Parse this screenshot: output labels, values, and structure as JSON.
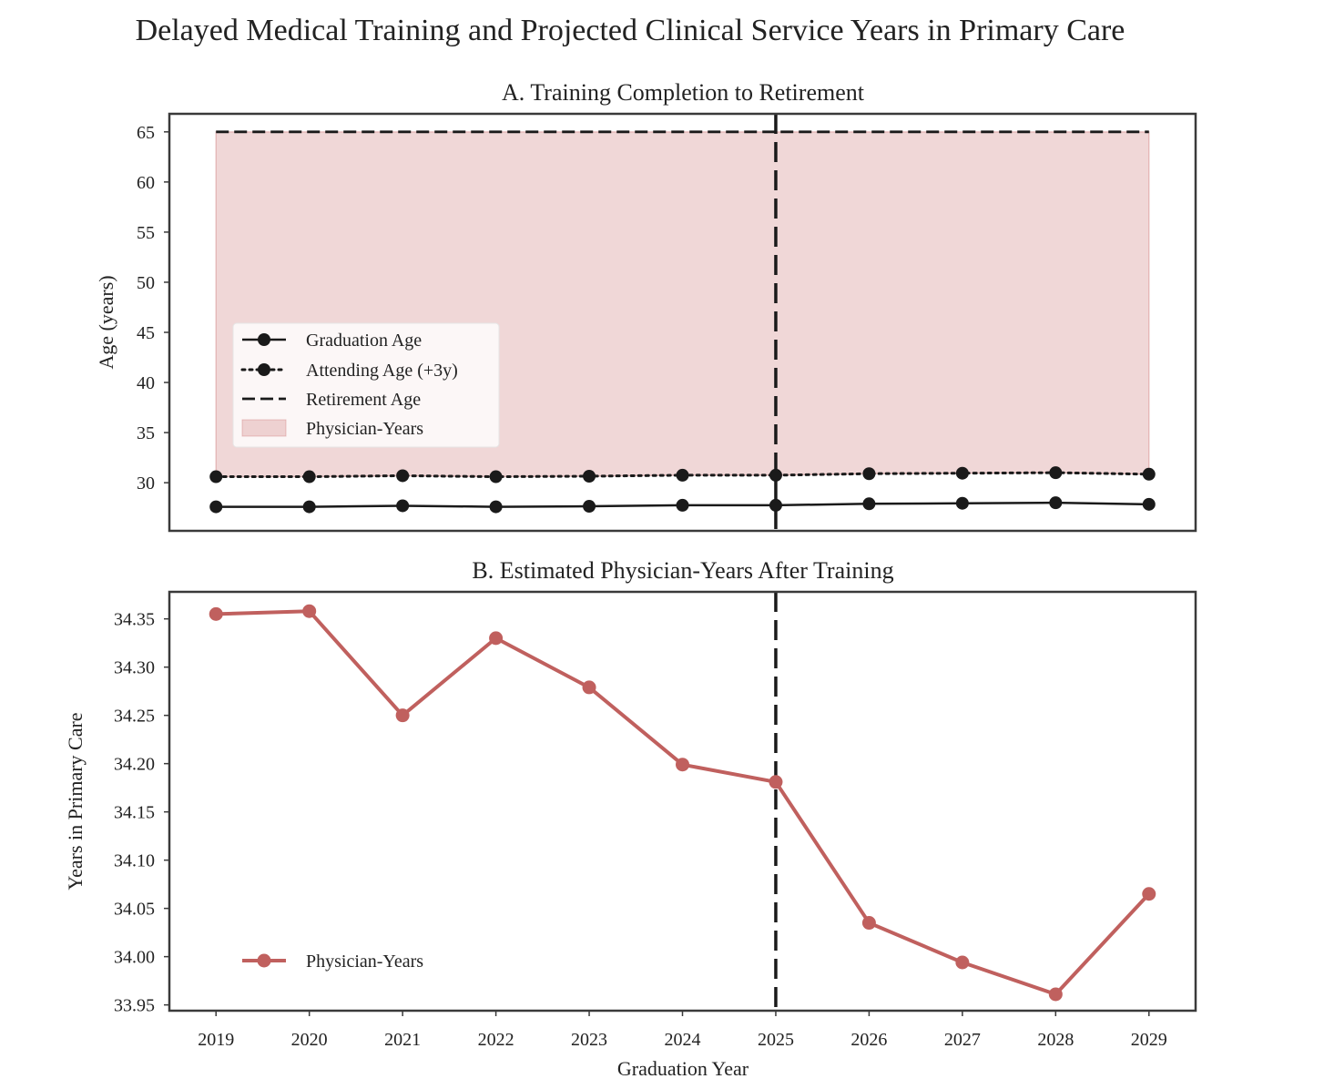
{
  "figure": {
    "title": "Delayed Medical Training and Projected Clinical Service Years in Primary Care"
  },
  "chart_data": [
    {
      "type": "line",
      "title": "A. Training Completion to Retirement",
      "xlabel": "",
      "ylabel": "Age (years)",
      "x": [
        2019,
        2020,
        2021,
        2022,
        2023,
        2024,
        2025,
        2026,
        2027,
        2028,
        2029
      ],
      "xlim": [
        2018.5,
        2029.5
      ],
      "ylim": [
        25.2,
        66.8
      ],
      "yticks": [
        30,
        35,
        40,
        45,
        50,
        55,
        60,
        65
      ],
      "grid": false,
      "legend": "center-left",
      "vline": 2025,
      "series": [
        {
          "name": "Graduation Age",
          "style": "solid",
          "marker": "circle",
          "color": "#1a1a1a",
          "values": [
            27.6,
            27.6,
            27.7,
            27.6,
            27.65,
            27.75,
            27.75,
            27.9,
            27.95,
            28.0,
            27.85
          ]
        },
        {
          "name": "Attending Age (+3y)",
          "style": "dotted",
          "marker": "circle",
          "color": "#1a1a1a",
          "values": [
            30.6,
            30.6,
            30.7,
            30.6,
            30.65,
            30.75,
            30.75,
            30.9,
            30.95,
            31.0,
            30.85
          ]
        },
        {
          "name": "Retirement Age",
          "style": "dashed",
          "color": "#1a1a1a",
          "values": [
            65,
            65,
            65,
            65,
            65,
            65,
            65,
            65,
            65,
            65,
            65
          ]
        }
      ],
      "fill": {
        "name": "Physician-Years",
        "between": [
          "Attending Age (+3y)",
          "Retirement Age"
        ],
        "color": "#c96a6a"
      }
    },
    {
      "type": "line",
      "title": "B. Estimated Physician-Years After Training",
      "xlabel": "Graduation Year",
      "ylabel": "Years in Primary Care",
      "x": [
        2019,
        2020,
        2021,
        2022,
        2023,
        2024,
        2025,
        2026,
        2027,
        2028,
        2029
      ],
      "xlim": [
        2018.5,
        2029.5
      ],
      "ylim": [
        33.944,
        34.378
      ],
      "yticks": [
        "33.95",
        "34.00",
        "34.05",
        "34.10",
        "34.15",
        "34.20",
        "34.25",
        "34.30",
        "34.35"
      ],
      "grid": false,
      "legend": "lower-left",
      "vline": 2025,
      "series": [
        {
          "name": "Physician-Years",
          "style": "solid",
          "marker": "circle",
          "color": "#c0605e",
          "values": [
            34.355,
            34.358,
            34.25,
            34.33,
            34.279,
            34.199,
            34.181,
            34.035,
            33.994,
            33.961,
            34.065
          ]
        }
      ]
    }
  ]
}
